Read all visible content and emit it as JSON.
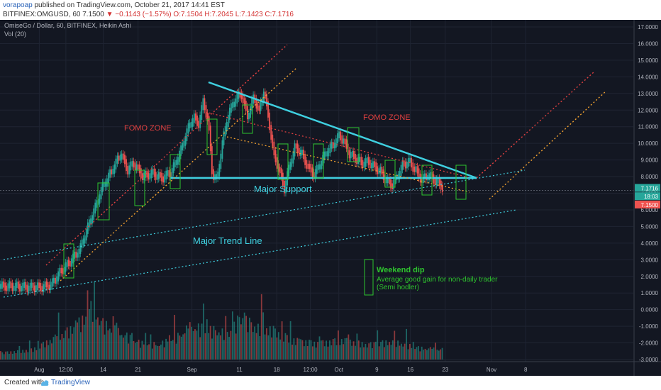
{
  "header": {
    "author": "vorapoap",
    "published": "published on TradingView.com, October 21, 2017 14:41 EST",
    "symbol": "BITFINEX:OMGUSD, 60",
    "last": "7.1500",
    "change": "−0.1143 (−1.57%)",
    "ohlc": "O:7.1504 H:7.2045 L:7.1423 C:7.1716"
  },
  "legend": {
    "title": "OmiseGo / Dollar, 60, BITFINEX, Heikin Ashi",
    "volume": "Vol (20)"
  },
  "footer": {
    "created": "Created with",
    "brand": "TradingView"
  },
  "annotations": {
    "fomo_left": "FOMO ZONE",
    "fomo_right": "FOMO ZONE",
    "major_support": "Major Support",
    "major_trend": "Major Trend Line",
    "weekend_title": "Weekend dip",
    "weekend_line1": "Average good gain for non-daily trader",
    "weekend_line2": "(Semi hodler)"
  },
  "price_tags": {
    "close": "7.1716",
    "countdown": "18:03",
    "last": "7.1500"
  },
  "colors": {
    "background": "#131722",
    "cyan": "#3fd0e0",
    "fomo_red": "#e04040",
    "dotted_orange": "#f0a030",
    "box_green": "#2ec42e",
    "candle_up": "#26a69a",
    "candle_down": "#ef5350"
  },
  "chart_data": {
    "type": "candlestick",
    "title": "OmiseGo / Dollar, 60, BITFINEX, Heikin Ashi",
    "y_ticks": [
      17.0,
      16.0,
      15.0,
      14.0,
      13.0,
      12.0,
      11.0,
      10.0,
      9.0,
      8.0,
      7.0,
      6.0,
      5.0,
      4.0,
      3.0,
      2.0,
      1.0,
      0.0,
      -1.0,
      -2.0,
      -3.0
    ],
    "y_tick_labels": [
      "17.0000",
      "16.0000",
      "15.0000",
      "14.0000",
      "13.0000",
      "12.0000",
      "11.0000",
      "10.0000",
      "9.0000",
      "8.0000",
      "7.0000",
      "6.0000",
      "5.0000",
      "4.0000",
      "3.0000",
      "2.0000",
      "1.0000",
      "0.0000",
      "-1.0000",
      "-2.0000",
      "-3.0000"
    ],
    "ylim": [
      -3.3,
      17.3
    ],
    "x_ticks": [
      "Aug",
      "12:00",
      "14",
      "21",
      "Sep",
      "11",
      "18",
      "12:00",
      "Oct",
      "9",
      "16",
      "23",
      "Nov",
      "8"
    ],
    "x_tick_pos": [
      0.062,
      0.104,
      0.163,
      0.218,
      0.303,
      0.378,
      0.437,
      0.49,
      0.535,
      0.595,
      0.648,
      0.703,
      0.776,
      0.83
    ],
    "price_path": [
      [
        0.0,
        1.4
      ],
      [
        0.02,
        1.4
      ],
      [
        0.045,
        1.35
      ],
      [
        0.065,
        1.35
      ],
      [
        0.08,
        1.5
      ],
      [
        0.095,
        2.3
      ],
      [
        0.11,
        2.9
      ],
      [
        0.125,
        3.6
      ],
      [
        0.14,
        5.2
      ],
      [
        0.15,
        6.2
      ],
      [
        0.16,
        7.3
      ],
      [
        0.175,
        8.3
      ],
      [
        0.19,
        9.4
      ],
      [
        0.2,
        8.4
      ],
      [
        0.21,
        8.8
      ],
      [
        0.225,
        8.0
      ],
      [
        0.24,
        8.2
      ],
      [
        0.255,
        7.9
      ],
      [
        0.27,
        8.3
      ],
      [
        0.285,
        9.6
      ],
      [
        0.295,
        10.8
      ],
      [
        0.305,
        11.6
      ],
      [
        0.312,
        11.1
      ],
      [
        0.32,
        12.5
      ],
      [
        0.328,
        11.3
      ],
      [
        0.334,
        8.2
      ],
      [
        0.342,
        7.8
      ],
      [
        0.35,
        10.0
      ],
      [
        0.36,
        11.8
      ],
      [
        0.37,
        12.6
      ],
      [
        0.38,
        13.0
      ],
      [
        0.39,
        11.6
      ],
      [
        0.4,
        12.8
      ],
      [
        0.408,
        11.9
      ],
      [
        0.416,
        13.2
      ],
      [
        0.425,
        11.0
      ],
      [
        0.432,
        9.2
      ],
      [
        0.44,
        8.4
      ],
      [
        0.448,
        7.3
      ],
      [
        0.456,
        8.6
      ],
      [
        0.465,
        9.8
      ],
      [
        0.475,
        9.4
      ],
      [
        0.485,
        8.6
      ],
      [
        0.495,
        8.1
      ],
      [
        0.505,
        8.8
      ],
      [
        0.515,
        9.5
      ],
      [
        0.525,
        9.9
      ],
      [
        0.535,
        10.5
      ],
      [
        0.542,
        10.1
      ],
      [
        0.55,
        9.4
      ],
      [
        0.56,
        9.1
      ],
      [
        0.57,
        8.8
      ],
      [
        0.58,
        8.9
      ],
      [
        0.59,
        8.6
      ],
      [
        0.6,
        8.3
      ],
      [
        0.61,
        7.7
      ],
      [
        0.618,
        7.5
      ],
      [
        0.625,
        7.9
      ],
      [
        0.635,
        8.7
      ],
      [
        0.645,
        8.9
      ],
      [
        0.655,
        8.4
      ],
      [
        0.665,
        7.8
      ],
      [
        0.675,
        8.1
      ],
      [
        0.685,
        7.8
      ],
      [
        0.695,
        7.5
      ],
      [
        0.7,
        7.2
      ]
    ],
    "volume_path": [
      [
        0.0,
        0.2
      ],
      [
        0.05,
        0.3
      ],
      [
        0.09,
        0.7
      ],
      [
        0.11,
        0.9
      ],
      [
        0.13,
        1.2
      ],
      [
        0.145,
        1.6
      ],
      [
        0.16,
        1.1
      ],
      [
        0.19,
        0.8
      ],
      [
        0.22,
        0.5
      ],
      [
        0.25,
        0.45
      ],
      [
        0.28,
        0.7
      ],
      [
        0.3,
        1.0
      ],
      [
        0.33,
        0.9
      ],
      [
        0.36,
        0.8
      ],
      [
        0.38,
        1.3
      ],
      [
        0.4,
        1.0
      ],
      [
        0.43,
        0.9
      ],
      [
        0.46,
        0.6
      ],
      [
        0.5,
        0.5
      ],
      [
        0.54,
        0.6
      ],
      [
        0.58,
        0.45
      ],
      [
        0.62,
        0.55
      ],
      [
        0.66,
        0.35
      ],
      [
        0.7,
        0.3
      ]
    ]
  }
}
